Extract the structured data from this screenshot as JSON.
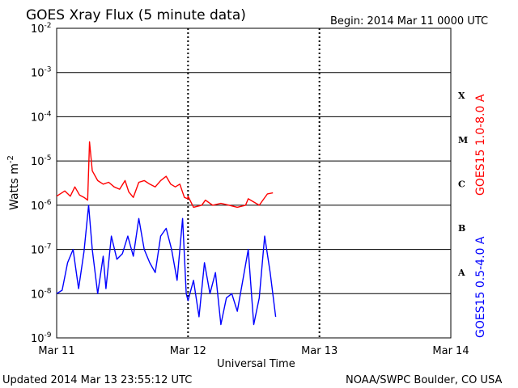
{
  "header": {
    "title": "GOES Xray Flux (5 minute data)",
    "begin_label": "Begin:  2014 Mar 11 0000 UTC"
  },
  "footer": {
    "updated": "Updated 2014 Mar 13 23:55:12 UTC",
    "credit": "NOAA/SWPC Boulder, CO USA"
  },
  "chart_data": {
    "type": "line",
    "title": "GOES Xray Flux (5 minute data)",
    "xlabel": "Universal Time",
    "ylabel": "Watts m",
    "ylabel_superscript": "-2",
    "y_scale": "log",
    "ylim": [
      1e-09,
      0.01
    ],
    "xlim": [
      "2014-03-11",
      "2014-03-14"
    ],
    "x_ticks": [
      "Mar 11",
      "Mar 12",
      "Mar 13",
      "Mar 14"
    ],
    "y_ticks": [
      {
        "base": "10",
        "exp": "-2"
      },
      {
        "base": "10",
        "exp": "-3"
      },
      {
        "base": "10",
        "exp": "-4"
      },
      {
        "base": "10",
        "exp": "-5"
      },
      {
        "base": "10",
        "exp": "-6"
      },
      {
        "base": "10",
        "exp": "-7"
      },
      {
        "base": "10",
        "exp": "-8"
      },
      {
        "base": "10",
        "exp": "-9"
      }
    ],
    "flare_classes": [
      "X",
      "M",
      "C",
      "B",
      "A"
    ],
    "grid": true,
    "series": [
      {
        "name": "GOES15 1.0-8.0 A",
        "color": "#ff0000",
        "points": [
          [
            "2014-03-11T00:00",
            1.6e-06
          ],
          [
            "2014-03-11T01:30",
            2.1e-06
          ],
          [
            "2014-03-11T02:30",
            1.6e-06
          ],
          [
            "2014-03-11T03:20",
            2.6e-06
          ],
          [
            "2014-03-11T04:10",
            1.7e-06
          ],
          [
            "2014-03-11T05:00",
            1.5e-06
          ],
          [
            "2014-03-11T05:40",
            1.3e-06
          ],
          [
            "2014-03-11T06:00",
            2.7e-05
          ],
          [
            "2014-03-11T06:30",
            6e-06
          ],
          [
            "2014-03-11T07:30",
            3.6e-06
          ],
          [
            "2014-03-11T08:30",
            3e-06
          ],
          [
            "2014-03-11T09:30",
            3.3e-06
          ],
          [
            "2014-03-11T10:30",
            2.6e-06
          ],
          [
            "2014-03-11T11:30",
            2.3e-06
          ],
          [
            "2014-03-11T12:30",
            3.6e-06
          ],
          [
            "2014-03-11T13:10",
            2e-06
          ],
          [
            "2014-03-11T14:00",
            1.5e-06
          ],
          [
            "2014-03-11T15:00",
            3.3e-06
          ],
          [
            "2014-03-11T16:00",
            3.6e-06
          ],
          [
            "2014-03-11T17:00",
            3e-06
          ],
          [
            "2014-03-11T18:00",
            2.6e-06
          ],
          [
            "2014-03-11T19:00",
            3.6e-06
          ],
          [
            "2014-03-11T20:00",
            4.5e-06
          ],
          [
            "2014-03-11T20:50",
            3e-06
          ],
          [
            "2014-03-11T21:40",
            2.6e-06
          ],
          [
            "2014-03-11T22:30",
            3e-06
          ],
          [
            "2014-03-11T23:20",
            1.5e-06
          ],
          [
            "2014-03-11T23:55",
            1.4e-06
          ],
          [
            "2014-03-12T00:00",
            1.6e-06
          ],
          [
            "2014-03-12T01:00",
            9e-07
          ],
          [
            "2014-03-12T02:30",
            1e-06
          ],
          [
            "2014-03-12T03:10",
            1.3e-06
          ],
          [
            "2014-03-12T04:30",
            1e-06
          ],
          [
            "2014-03-12T06:00",
            1.1e-06
          ],
          [
            "2014-03-12T07:30",
            1e-06
          ],
          [
            "2014-03-12T09:00",
            9e-07
          ],
          [
            "2014-03-12T10:30",
            1e-06
          ],
          [
            "2014-03-12T11:00",
            1.4e-06
          ],
          [
            "2014-03-12T13:00",
            1e-06
          ],
          [
            "2014-03-12T14:30",
            1.8e-06
          ],
          [
            "2014-03-12T15:30",
            1.9e-06
          ]
        ]
      },
      {
        "name": "GOES15 0.5-4.0 A",
        "color": "#0000ff",
        "points": [
          [
            "2014-03-11T00:00",
            1e-08
          ],
          [
            "2014-03-11T01:00",
            1.2e-08
          ],
          [
            "2014-03-11T02:00",
            5e-08
          ],
          [
            "2014-03-11T03:00",
            1e-07
          ],
          [
            "2014-03-11T04:00",
            1.3e-08
          ],
          [
            "2014-03-11T05:00",
            9e-08
          ],
          [
            "2014-03-11T05:50",
            1e-06
          ],
          [
            "2014-03-11T06:30",
            1e-07
          ],
          [
            "2014-03-11T07:30",
            1e-08
          ],
          [
            "2014-03-11T08:30",
            7e-08
          ],
          [
            "2014-03-11T09:00",
            1.3e-08
          ],
          [
            "2014-03-11T10:00",
            2e-07
          ],
          [
            "2014-03-11T11:00",
            6e-08
          ],
          [
            "2014-03-11T12:00",
            8e-08
          ],
          [
            "2014-03-11T13:00",
            2e-07
          ],
          [
            "2014-03-11T14:00",
            7e-08
          ],
          [
            "2014-03-11T15:00",
            5e-07
          ],
          [
            "2014-03-11T16:00",
            1e-07
          ],
          [
            "2014-03-11T17:00",
            5e-08
          ],
          [
            "2014-03-11T18:00",
            3e-08
          ],
          [
            "2014-03-11T19:00",
            2e-07
          ],
          [
            "2014-03-11T20:00",
            3e-07
          ],
          [
            "2014-03-11T21:00",
            1e-07
          ],
          [
            "2014-03-11T22:00",
            2e-08
          ],
          [
            "2014-03-11T23:00",
            5e-07
          ],
          [
            "2014-03-11T23:40",
            1e-08
          ],
          [
            "2014-03-12T00:00",
            7e-09
          ],
          [
            "2014-03-12T01:00",
            2e-08
          ],
          [
            "2014-03-12T02:00",
            3e-09
          ],
          [
            "2014-03-12T03:00",
            5e-08
          ],
          [
            "2014-03-12T04:00",
            1e-08
          ],
          [
            "2014-03-12T05:00",
            3e-08
          ],
          [
            "2014-03-12T06:00",
            2e-09
          ],
          [
            "2014-03-12T07:00",
            8e-09
          ],
          [
            "2014-03-12T08:00",
            1e-08
          ],
          [
            "2014-03-12T09:00",
            4e-09
          ],
          [
            "2014-03-12T10:00",
            2e-08
          ],
          [
            "2014-03-12T11:00",
            1e-07
          ],
          [
            "2014-03-12T12:00",
            2e-09
          ],
          [
            "2014-03-12T13:00",
            8e-09
          ],
          [
            "2014-03-12T14:00",
            2e-07
          ],
          [
            "2014-03-12T15:00",
            3e-08
          ],
          [
            "2014-03-12T16:00",
            3e-09
          ]
        ]
      }
    ]
  }
}
